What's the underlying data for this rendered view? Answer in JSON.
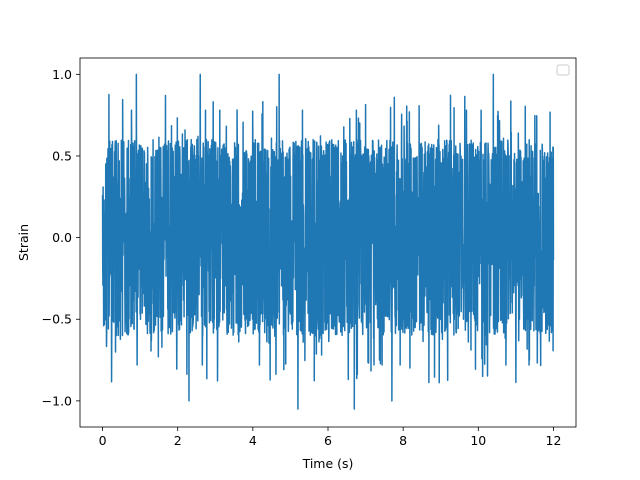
{
  "chart_data": {
    "type": "line",
    "title": "",
    "xlabel": "Time (s)",
    "ylabel": "Strain",
    "xlim": [
      -0.6,
      12.6
    ],
    "ylim": [
      -1.16,
      1.1
    ],
    "xticks": [
      0,
      2,
      4,
      6,
      8,
      10,
      12
    ],
    "xtick_labels": [
      "0",
      "2",
      "4",
      "6",
      "8",
      "10",
      "12"
    ],
    "yticks": [
      -1.0,
      -0.5,
      0.0,
      0.5,
      1.0
    ],
    "ytick_labels": [
      "−1.0",
      "−0.5",
      "0.0",
      "0.5",
      "1.0"
    ],
    "grid": false,
    "legend": {
      "placement": "top-right",
      "entries": []
    },
    "series": [
      {
        "color": "#1f77b4",
        "description_of_signal": "dense noise-like oscillation between about -0.6 and 0.6 with spikes to +/-1.0",
        "x_range": [
          0,
          12
        ],
        "typical_envelope": [
          -0.6,
          0.6
        ],
        "peaks": [
          {
            "x": 0.9,
            "y": 1.0
          },
          {
            "x": 2.6,
            "y": 1.0
          },
          {
            "x": 4.7,
            "y": 1.0
          },
          {
            "x": 10.4,
            "y": 1.0
          },
          {
            "x": 2.3,
            "y": -1.0
          },
          {
            "x": 5.2,
            "y": -1.05
          },
          {
            "x": 6.7,
            "y": -1.05
          },
          {
            "x": 7.7,
            "y": -1.0
          }
        ]
      }
    ]
  }
}
